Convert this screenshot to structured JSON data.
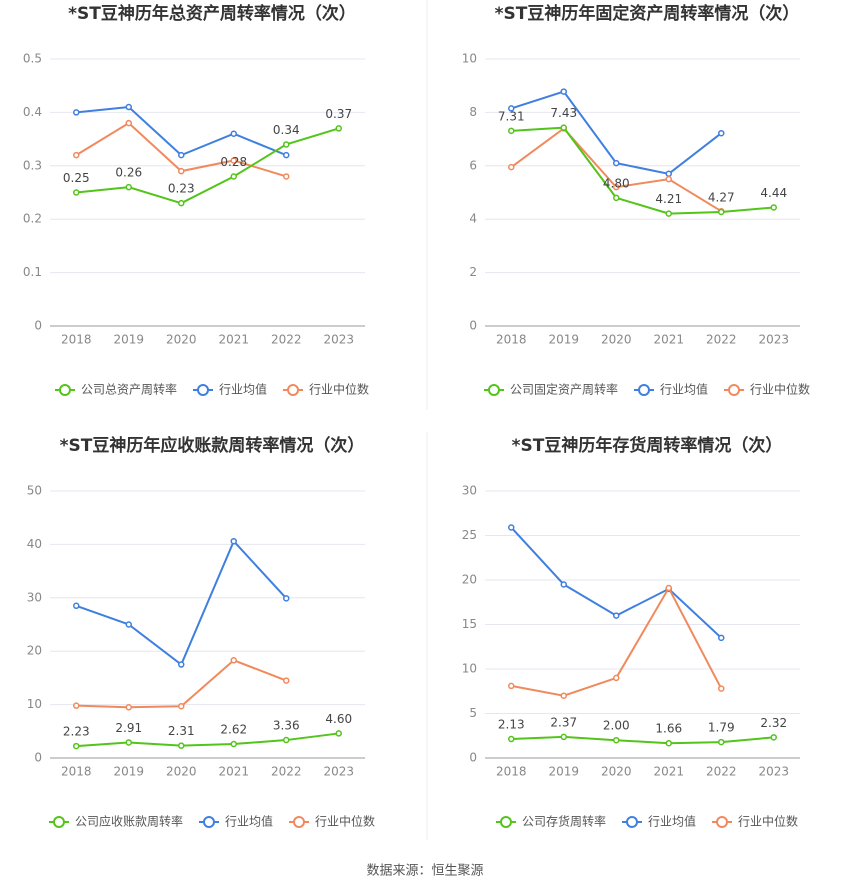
{
  "chart_data": [
    {
      "type": "line",
      "title": "*ST豆神历年总资产周转率情况（次）",
      "categories": [
        "2018",
        "2019",
        "2020",
        "2021",
        "2022",
        "2023"
      ],
      "ylim": [
        0,
        0.5
      ],
      "yticks": [
        0,
        0.1,
        0.2,
        0.3,
        0.4,
        0.5
      ],
      "grid": true,
      "series": [
        {
          "name": "公司总资产周转率",
          "color": "#52c41a",
          "values": [
            0.25,
            0.26,
            0.23,
            0.28,
            0.34,
            0.37
          ],
          "value_labels": [
            "0.25",
            "0.26",
            "0.23",
            "0.28",
            "0.34",
            "0.37"
          ]
        },
        {
          "name": "行业均值",
          "color": "#3e7fe0",
          "values": [
            0.4,
            0.41,
            0.32,
            0.36,
            0.32,
            null
          ]
        },
        {
          "name": "行业中位数",
          "color": "#f08a5d",
          "values": [
            0.32,
            0.38,
            0.29,
            0.31,
            0.28,
            null
          ]
        }
      ]
    },
    {
      "type": "line",
      "title": "*ST豆神历年固定资产周转率情况（次）",
      "categories": [
        "2018",
        "2019",
        "2020",
        "2021",
        "2022",
        "2023"
      ],
      "ylim": [
        0,
        10
      ],
      "yticks": [
        0,
        2,
        4,
        6,
        8,
        10
      ],
      "grid": true,
      "series": [
        {
          "name": "公司固定资产周转率",
          "color": "#52c41a",
          "values": [
            7.31,
            7.43,
            4.8,
            4.21,
            4.27,
            4.44
          ],
          "value_labels": [
            "7.31",
            "7.43",
            "4.80",
            "4.21",
            "4.27",
            "4.44"
          ]
        },
        {
          "name": "行业均值",
          "color": "#3e7fe0",
          "values": [
            8.15,
            8.78,
            6.1,
            5.7,
            7.22,
            null
          ]
        },
        {
          "name": "行业中位数",
          "color": "#f08a5d",
          "values": [
            5.95,
            7.4,
            5.2,
            5.5,
            4.3,
            null
          ]
        }
      ]
    },
    {
      "type": "line",
      "title": "*ST豆神历年应收账款周转率情况（次）",
      "categories": [
        "2018",
        "2019",
        "2020",
        "2021",
        "2022",
        "2023"
      ],
      "ylim": [
        0,
        50
      ],
      "yticks": [
        0,
        10,
        20,
        30,
        40,
        50
      ],
      "grid": true,
      "series": [
        {
          "name": "公司应收账款周转率",
          "color": "#52c41a",
          "values": [
            2.23,
            2.91,
            2.31,
            2.62,
            3.36,
            4.6
          ],
          "value_labels": [
            "2.23",
            "2.91",
            "2.31",
            "2.62",
            "3.36",
            "4.60"
          ]
        },
        {
          "name": "行业均值",
          "color": "#3e7fe0",
          "values": [
            28.5,
            25.0,
            17.5,
            40.6,
            29.9,
            null
          ]
        },
        {
          "name": "行业中位数",
          "color": "#f08a5d",
          "values": [
            9.8,
            9.5,
            9.7,
            18.3,
            14.5,
            null
          ]
        }
      ]
    },
    {
      "type": "line",
      "title": "*ST豆神历年存货周转率情况（次）",
      "categories": [
        "2018",
        "2019",
        "2020",
        "2021",
        "2022",
        "2023"
      ],
      "ylim": [
        0,
        30
      ],
      "yticks": [
        0,
        5,
        10,
        15,
        20,
        25,
        30
      ],
      "grid": true,
      "series": [
        {
          "name": "公司存货周转率",
          "color": "#52c41a",
          "values": [
            2.13,
            2.37,
            2.0,
            1.66,
            1.79,
            2.32
          ],
          "value_labels": [
            "2.13",
            "2.37",
            "2.00",
            "1.66",
            "1.79",
            "2.32"
          ]
        },
        {
          "name": "行业均值",
          "color": "#3e7fe0",
          "values": [
            25.9,
            19.5,
            16.0,
            19.0,
            13.5,
            null
          ]
        },
        {
          "name": "行业中位数",
          "color": "#f08a5d",
          "values": [
            8.1,
            7.0,
            9.0,
            19.1,
            7.8,
            null
          ]
        }
      ]
    }
  ],
  "source": "数据来源：恒生聚源"
}
